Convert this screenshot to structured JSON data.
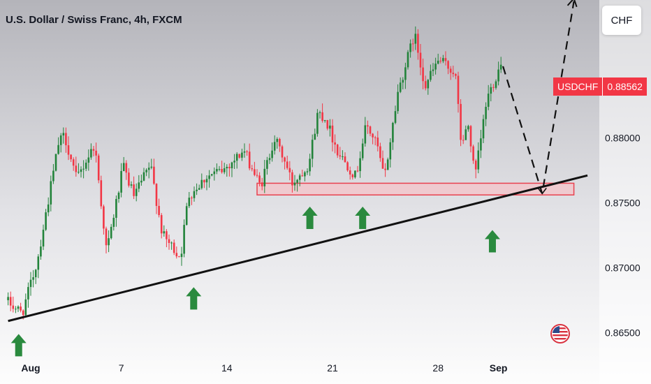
{
  "header": {
    "title": "U.S. Dollar / Swiss Franc, 4h, FXCM"
  },
  "currency_button": {
    "label": "CHF"
  },
  "price_tag": {
    "symbol": "USDCHF",
    "price": "0.88562",
    "color": "#f23645"
  },
  "colors": {
    "up": "#22833a",
    "down": "#f23645",
    "arrow": "#2a8a3e",
    "zone_fill": "#f4c3c8",
    "zone_border": "#e8414f"
  },
  "chart_data": {
    "type": "candlestick",
    "title": "U.S. Dollar / Swiss Franc, 4h, FXCM",
    "ylim": [
      0.8632,
      0.8906
    ],
    "y_ticks": [
      "0.88000",
      "0.87500",
      "0.87000",
      "0.86500"
    ],
    "y_tick_values": [
      0.88,
      0.875,
      0.87,
      0.865
    ],
    "x_ticks": [
      "Aug",
      "7",
      "14",
      "21",
      "28",
      "Sep"
    ],
    "x_tick_days": [
      1,
      7,
      14,
      21,
      28,
      32
    ],
    "series": [
      {
        "name": "",
        "kind": "candles",
        "x_range_days": [
          -0.5,
          32.3
        ],
        "start_price": 0.8675,
        "end_price": 0.88562,
        "path_days": [
          -0.5,
          0.6,
          1.6,
          3.0,
          3.4,
          4.2,
          5.4,
          6.2,
          7.3,
          8.0,
          9.1,
          9.9,
          11.1,
          11.6,
          12.8,
          13.9,
          15.3,
          16.4,
          17.3,
          17.9,
          18.5,
          19.6,
          20.2,
          20.7,
          21.5,
          22.7,
          23.4,
          24.1,
          24.6,
          25.5,
          26.6,
          27.3,
          28.2,
          29.3,
          29.7,
          30.2,
          30.6,
          31.4,
          32.3
        ],
        "path_prices": [
          0.8675,
          0.8665,
          0.8705,
          0.8795,
          0.8802,
          0.8768,
          0.8795,
          0.8712,
          0.8778,
          0.8755,
          0.8779,
          0.8725,
          0.8708,
          0.8755,
          0.877,
          0.8775,
          0.879,
          0.8762,
          0.88,
          0.8785,
          0.8765,
          0.878,
          0.882,
          0.8815,
          0.879,
          0.877,
          0.881,
          0.8795,
          0.8768,
          0.8835,
          0.888,
          0.884,
          0.886,
          0.885,
          0.8795,
          0.881,
          0.8768,
          0.883,
          0.8856
        ]
      },
      {
        "name": "",
        "kind": "trendline",
        "points": [
          [
            -0.5,
            0.8659
          ],
          [
            37.9,
            0.8771
          ]
        ]
      },
      {
        "name": "",
        "kind": "projection",
        "points": [
          [
            32.3,
            0.8855
          ],
          [
            34.9,
            0.8757
          ],
          [
            37.0,
            0.8905
          ]
        ]
      }
    ],
    "zones": [
      {
        "label": "",
        "day_from": 16.0,
        "day_to": 37.0,
        "price_low": 0.8756,
        "price_high": 0.8765
      }
    ],
    "annotations": [
      {
        "type": "up-arrow",
        "day": 0.2,
        "price": 0.8649
      },
      {
        "type": "up-arrow",
        "day": 11.8,
        "price": 0.8685
      },
      {
        "type": "up-arrow",
        "day": 19.5,
        "price": 0.8747
      },
      {
        "type": "up-arrow",
        "day": 23.0,
        "price": 0.8747
      },
      {
        "type": "up-arrow",
        "day": 31.6,
        "price": 0.8729
      }
    ],
    "grid": false,
    "xlabel": "",
    "ylabel": ""
  }
}
